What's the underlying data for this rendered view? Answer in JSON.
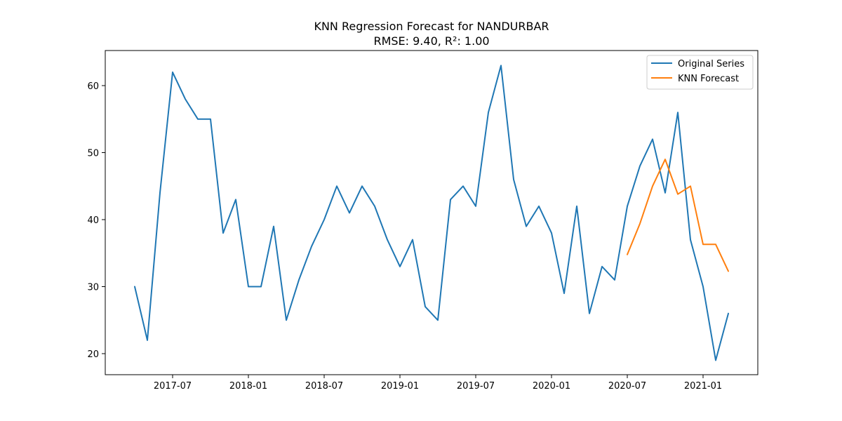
{
  "chart_data": {
    "type": "line",
    "title": "KNN Regression Forecast for NANDURBAR",
    "subtitle": "RMSE: 9.40, R²: 1.00",
    "xlabel": "",
    "ylabel": "",
    "x_ticks": [
      "2017-07",
      "2018-01",
      "2018-07",
      "2019-01",
      "2019-07",
      "2020-01",
      "2020-07",
      "2021-01"
    ],
    "y_ticks": [
      20,
      30,
      40,
      50,
      60
    ],
    "grid": false,
    "legend_position": "top-right",
    "series": [
      {
        "name": "Original Series",
        "color": "#1f77b4",
        "x": [
          "2017-04",
          "2017-05",
          "2017-06",
          "2017-07",
          "2017-08",
          "2017-09",
          "2017-10",
          "2017-11",
          "2017-12",
          "2018-01",
          "2018-02",
          "2018-03",
          "2018-04",
          "2018-05",
          "2018-06",
          "2018-07",
          "2018-08",
          "2018-09",
          "2018-10",
          "2018-11",
          "2018-12",
          "2019-01",
          "2019-02",
          "2019-03",
          "2019-04",
          "2019-05",
          "2019-06",
          "2019-07",
          "2019-08",
          "2019-09",
          "2019-10",
          "2019-11",
          "2019-12",
          "2020-01",
          "2020-02",
          "2020-03",
          "2020-04",
          "2020-05",
          "2020-06",
          "2020-07",
          "2020-08",
          "2020-09",
          "2020-10",
          "2020-11",
          "2020-12",
          "2021-01",
          "2021-02",
          "2021-03"
        ],
        "values": [
          30,
          22,
          44,
          62,
          58,
          55,
          55,
          38,
          43,
          30,
          30,
          39,
          25,
          31,
          36,
          40,
          45,
          41,
          45,
          42,
          37,
          33,
          37,
          27,
          25,
          43,
          45,
          42,
          56,
          63,
          46,
          39,
          42,
          38,
          29,
          42,
          26,
          33,
          31,
          42,
          48,
          52,
          44,
          56,
          37,
          30,
          19,
          26
        ]
      },
      {
        "name": "KNN Forecast",
        "color": "#ff7f0e",
        "x": [
          "2020-07",
          "2020-08",
          "2020-09",
          "2020-10",
          "2020-11",
          "2020-12",
          "2021-01",
          "2021-02",
          "2021-03"
        ],
        "values": [
          34.8,
          39.4,
          45.0,
          49.0,
          43.8,
          45.0,
          36.3,
          36.3,
          32.3
        ]
      }
    ]
  }
}
